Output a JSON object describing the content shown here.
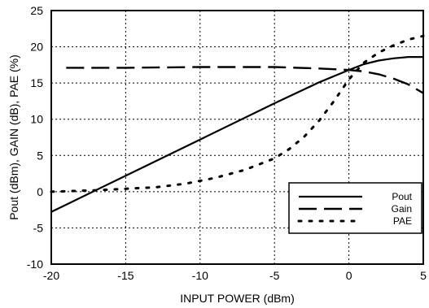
{
  "chart_data": {
    "type": "line",
    "title": "",
    "xlabel": "INPUT POWER (dBm)",
    "ylabel": "Pout (dBm), GAIN (dB), PAE (%)",
    "xlim": [
      -20,
      5
    ],
    "ylim": [
      -10,
      25
    ],
    "xticks": [
      -20,
      -15,
      -10,
      -5,
      0,
      5
    ],
    "yticks": [
      -10,
      -5,
      0,
      5,
      10,
      15,
      20,
      25
    ],
    "grid": true,
    "legend_position": "bottom-right",
    "series": [
      {
        "name": "Pout",
        "style": "solid",
        "x": [
          -20,
          -15,
          -10,
          -5,
          -2,
          0,
          1,
          2,
          3,
          4,
          5
        ],
        "y": [
          -2.8,
          2.2,
          7.2,
          12.2,
          15.1,
          16.8,
          17.6,
          18.1,
          18.4,
          18.6,
          18.6
        ]
      },
      {
        "name": "Gain",
        "style": "dashed",
        "x": [
          -19,
          -15,
          -10,
          -5,
          -2,
          0,
          1,
          2,
          3,
          4,
          5
        ],
        "y": [
          17.1,
          17.1,
          17.2,
          17.2,
          17.0,
          16.8,
          16.6,
          16.2,
          15.6,
          14.8,
          13.6
        ]
      },
      {
        "name": "PAE",
        "style": "dotted",
        "x": [
          -20,
          -17,
          -15,
          -13,
          -11,
          -9,
          -7,
          -5,
          -4,
          -3,
          -2,
          -1,
          0,
          1,
          2,
          3,
          4,
          5
        ],
        "y": [
          0.0,
          0.2,
          0.4,
          0.6,
          1.1,
          1.9,
          3.0,
          4.6,
          5.9,
          7.6,
          9.8,
          12.5,
          15.5,
          17.8,
          19.2,
          20.2,
          21.0,
          21.5
        ]
      }
    ]
  }
}
